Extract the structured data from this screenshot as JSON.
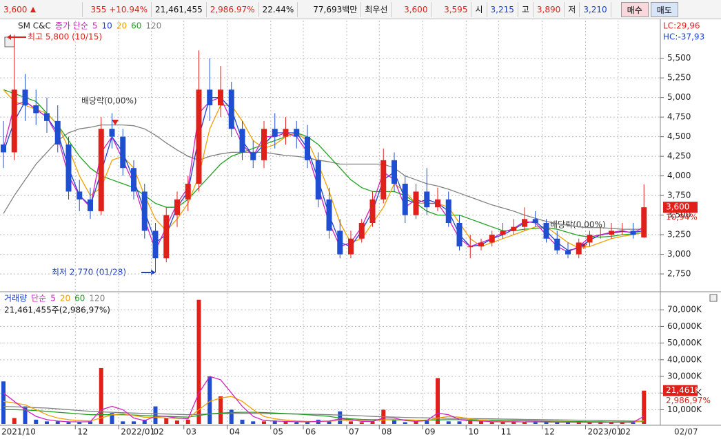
{
  "toolbar": {
    "price": "3,600",
    "change": "355",
    "change_rate": "+10.94%",
    "volume": "21,461,455",
    "volume_rate": "2,986.97%",
    "turnover": "22.44%",
    "amount": "77,693백만",
    "best_label": "최우선",
    "ask": "3,600",
    "bid": "3,595",
    "open_label": "시",
    "open": "3,215",
    "high_label": "고",
    "high": "3,890",
    "low_label": "저",
    "low": "3,210",
    "buy": "매수",
    "sell": "매도"
  },
  "chart_data": [
    {
      "type": "candlestick",
      "title": "SM C&C",
      "ma_label": "종가 단순",
      "up_color": "#e0201a",
      "down_color": "#1f4fd0",
      "categories": [
        "2021/10",
        null,
        null,
        null,
        null,
        null,
        null,
        "12",
        null,
        null,
        null,
        "2022/01",
        null,
        null,
        "02",
        null,
        null,
        "03",
        null,
        null,
        null,
        "04",
        null,
        null,
        null,
        "05",
        null,
        null,
        "06",
        null,
        null,
        null,
        "07",
        null,
        null,
        "08",
        null,
        null,
        null,
        "09",
        null,
        null,
        null,
        "10",
        null,
        null,
        "11",
        null,
        null,
        null,
        "12",
        null,
        null,
        null,
        "2023/01",
        null,
        null,
        "02",
        null,
        null
      ],
      "open": [
        4400,
        4300,
        5100,
        4900,
        4800,
        4700,
        4400,
        3800,
        3700,
        3550,
        4600,
        4500,
        4100,
        3800,
        3300,
        2950,
        3500,
        3700,
        3900,
        5100,
        4900,
        5100,
        4600,
        4300,
        4200,
        4600,
        4500,
        4600,
        4500,
        4200,
        3700,
        3300,
        3000,
        3200,
        3400,
        3700,
        4200,
        3900,
        3500,
        3800,
        3600,
        3700,
        3400,
        3100,
        3100,
        3150,
        3250,
        3300,
        3350,
        3450,
        3400,
        3200,
        3050,
        3000,
        3150,
        3250,
        3250,
        3300,
        3300,
        3215
      ],
      "high": [
        4700,
        5800,
        5300,
        5100,
        5000,
        4900,
        4500,
        3950,
        3850,
        4750,
        4800,
        4600,
        4200,
        3900,
        3400,
        3600,
        3800,
        4000,
        5600,
        5500,
        5400,
        5200,
        4700,
        4450,
        4700,
        4800,
        4750,
        4700,
        4650,
        4300,
        3850,
        3450,
        3300,
        3450,
        3800,
        4350,
        4300,
        4000,
        3900,
        4100,
        3850,
        3800,
        3500,
        3250,
        3200,
        3300,
        3400,
        3450,
        3600,
        3550,
        3450,
        3300,
        3150,
        3200,
        3300,
        3350,
        3400,
        3400,
        3400,
        3890
      ],
      "low": [
        4100,
        4200,
        4700,
        4650,
        4550,
        4300,
        3700,
        3550,
        3450,
        3500,
        4350,
        4000,
        3700,
        3200,
        2770,
        2900,
        3350,
        3550,
        3800,
        4700,
        4750,
        4500,
        4200,
        4100,
        4100,
        4350,
        4400,
        4350,
        4100,
        3600,
        3200,
        2950,
        2950,
        3150,
        3350,
        3650,
        3800,
        3400,
        3450,
        3500,
        3550,
        3350,
        3050,
        2950,
        3050,
        3100,
        3200,
        3250,
        3300,
        3350,
        3150,
        3000,
        2950,
        2950,
        3100,
        3200,
        3200,
        3250,
        3200,
        3210
      ],
      "close": [
        4300,
        5100,
        4900,
        4800,
        4700,
        4400,
        3800,
        3700,
        3550,
        4600,
        4500,
        4100,
        3800,
        3300,
        2950,
        3500,
        3700,
        3900,
        5100,
        4900,
        5100,
        4600,
        4300,
        4200,
        4600,
        4500,
        4600,
        4500,
        4200,
        3700,
        3300,
        3000,
        3200,
        3400,
        3700,
        4200,
        3900,
        3500,
        3800,
        3600,
        3700,
        3400,
        3100,
        3100,
        3150,
        3250,
        3300,
        3350,
        3450,
        3400,
        3200,
        3050,
        3000,
        3150,
        3250,
        3250,
        3300,
        3300,
        3250,
        3600
      ],
      "series": [
        {
          "name": "5",
          "color": "#d020c0",
          "values": [
            4350,
            4900,
            4950,
            4850,
            4750,
            4500,
            4000,
            3750,
            3600,
            4300,
            4500,
            4200,
            3900,
            3450,
            3050,
            3350,
            3650,
            3850,
            4800,
            4950,
            5000,
            4700,
            4400,
            4250,
            4500,
            4500,
            4550,
            4500,
            4300,
            3850,
            3400,
            3100,
            3150,
            3350,
            3650,
            4050,
            3950,
            3600,
            3700,
            3650,
            3650,
            3450,
            3200,
            3100,
            3150,
            3200,
            3280,
            3330,
            3420,
            3400,
            3250,
            3100,
            3030,
            3100,
            3220,
            3250,
            3280,
            3300,
            3270,
            3350
          ]
        },
        {
          "name": "10",
          "color": "#2040d0",
          "values": [
            4300,
            4700,
            4950,
            4850,
            4750,
            4550,
            4100,
            3750,
            3620,
            4050,
            4500,
            4300,
            3950,
            3550,
            3150,
            3250,
            3600,
            3800,
            4500,
            5000,
            5000,
            4850,
            4450,
            4250,
            4400,
            4550,
            4550,
            4550,
            4350,
            3950,
            3500,
            3150,
            3100,
            3300,
            3550,
            3950,
            4050,
            3700,
            3650,
            3700,
            3650,
            3550,
            3250,
            3100,
            3120,
            3200,
            3250,
            3320,
            3400,
            3420,
            3300,
            3150,
            3050,
            3080,
            3180,
            3250,
            3270,
            3290,
            3280,
            3300
          ]
        },
        {
          "name": "20",
          "color": "#f0a000",
          "values": [
            5100,
            4950,
            4900,
            4850,
            4800,
            4650,
            4350,
            4000,
            3750,
            3850,
            4200,
            4250,
            4100,
            3750,
            3450,
            3300,
            3450,
            3650,
            4000,
            4600,
            4900,
            4900,
            4700,
            4450,
            4350,
            4400,
            4500,
            4550,
            4450,
            4150,
            3800,
            3400,
            3150,
            3200,
            3400,
            3600,
            3900,
            3800,
            3650,
            3650,
            3650,
            3600,
            3400,
            3200,
            3100,
            3150,
            3200,
            3250,
            3300,
            3350,
            3350,
            3250,
            3150,
            3080,
            3100,
            3150,
            3200,
            3230,
            3250,
            3280
          ]
        },
        {
          "name": "60",
          "color": "#20a020",
          "values": [
            5100,
            5050,
            5000,
            4950,
            4800,
            4650,
            4450,
            4250,
            4100,
            4000,
            3950,
            3900,
            3850,
            3750,
            3650,
            3600,
            3600,
            3700,
            3850,
            4000,
            4150,
            4250,
            4300,
            4350,
            4400,
            4450,
            4500,
            4550,
            4500,
            4400,
            4250,
            4100,
            3950,
            3850,
            3800,
            3800,
            3800,
            3750,
            3650,
            3550,
            3500,
            3500,
            3500,
            3450,
            3400,
            3350,
            3300,
            3300,
            3320,
            3330,
            3340,
            3320,
            3280,
            3240,
            3220,
            3220,
            3230,
            3250,
            3260,
            3280
          ]
        },
        {
          "name": "120",
          "color": "#808080",
          "values": [
            3520,
            3750,
            3950,
            4150,
            4300,
            4450,
            4550,
            4600,
            4620,
            4650,
            4650,
            4650,
            4640,
            4600,
            4520,
            4420,
            4330,
            4250,
            4200,
            4250,
            4280,
            4300,
            4300,
            4300,
            4300,
            4280,
            4260,
            4250,
            4230,
            4200,
            4180,
            4150,
            4150,
            4150,
            4150,
            4150,
            4100,
            4000,
            3950,
            3900,
            3870,
            3830,
            3780,
            3730,
            3680,
            3630,
            3590,
            3550,
            3500,
            3460,
            3420,
            3390,
            3370,
            3350,
            3340,
            3340,
            3330,
            3320,
            3320,
            3320
          ]
        }
      ],
      "ylim": [
        2540,
        5980
      ],
      "yticks": [
        {
          "value": 2750,
          "label": "2,750"
        },
        {
          "value": 3000,
          "label": "3,000"
        },
        {
          "value": 3250,
          "label": "3,250"
        },
        {
          "value": 3500,
          "label": "3,500"
        },
        {
          "value": 3750,
          "label": "3,750"
        },
        {
          "value": 4000,
          "label": "4,000"
        },
        {
          "value": 4250,
          "label": "4,250"
        },
        {
          "value": 4500,
          "label": "4,500"
        },
        {
          "value": 4750,
          "label": "4,750"
        },
        {
          "value": 5000,
          "label": "5,000"
        },
        {
          "value": 5250,
          "label": "5,250"
        },
        {
          "value": 5500,
          "label": "5,500"
        }
      ],
      "high_note": "최고 5,800 (10/15)",
      "low_note": "최저 2,770 (01/28)",
      "dividend_notes": [
        "배당락(0,00%)",
        "배당락(0,00%)"
      ],
      "lc": "LC:29,96",
      "hc": "HC:-37,93",
      "last_label": {
        "value": 3600,
        "label": "3,600"
      },
      "last_change": "10,94%",
      "last_date": "02/07",
      "grid": true
    },
    {
      "type": "bar",
      "name": "거래량",
      "ma_label": "단순",
      "unit_note": "21,461,455주(2,986,97%)",
      "values": [
        27000,
        5000,
        12000,
        4000,
        3000,
        3000,
        2500,
        2500,
        3000,
        35000,
        8000,
        3000,
        3000,
        4000,
        12000,
        5000,
        3500,
        4000,
        76000,
        30000,
        18000,
        10000,
        4000,
        3000,
        3000,
        3500,
        3000,
        2500,
        2500,
        4000,
        3000,
        9000,
        3000,
        2500,
        3000,
        10000,
        3500,
        2500,
        3000,
        4000,
        29000,
        3000,
        3000,
        3500,
        3000,
        2500,
        2500,
        3000,
        2500,
        3000,
        2500,
        2500,
        2500,
        2500,
        2500,
        2500,
        2500,
        2500,
        2500,
        21461
      ],
      "series": [
        {
          "name": "5",
          "color": "#d020c0",
          "values": [
            20000,
            15000,
            10000,
            6000,
            4000,
            3200,
            2800,
            2700,
            2800,
            10000,
            12000,
            10000,
            5000,
            3500,
            6000,
            6000,
            5000,
            4500,
            20000,
            30000,
            28000,
            20000,
            12000,
            6000,
            3500,
            3200,
            3000,
            2800,
            2700,
            3000,
            3200,
            4500,
            4000,
            3000,
            3000,
            5000,
            5000,
            3500,
            3000,
            3500,
            8000,
            7000,
            4000,
            3300,
            3200,
            2800,
            2700,
            2800,
            2700,
            2800,
            2600,
            2500,
            2500,
            2500,
            2500,
            2500,
            2500,
            2500,
            2500,
            6000
          ]
        },
        {
          "name": "20",
          "color": "#f0a000",
          "values": [
            15000,
            14000,
            13000,
            10000,
            7000,
            5000,
            4000,
            3500,
            3300,
            5000,
            7000,
            7500,
            6500,
            5500,
            5500,
            5000,
            4800,
            4800,
            10000,
            15000,
            17000,
            18000,
            15000,
            10000,
            6000,
            4500,
            3800,
            3300,
            3000,
            3000,
            3100,
            3500,
            3700,
            3500,
            3300,
            3800,
            4200,
            4000,
            3700,
            3500,
            5000,
            6000,
            5500,
            4500,
            3800,
            3300,
            3000,
            2800,
            2700,
            2700,
            2700,
            2600,
            2600,
            2500,
            2500,
            2500,
            2500,
            2500,
            2500,
            3400
          ]
        },
        {
          "name": "60",
          "color": "#20a020",
          "values": [
            10000,
            10000,
            9800,
            9500,
            9000,
            8500,
            8000,
            7500,
            7000,
            7000,
            7000,
            7000,
            6800,
            6500,
            6300,
            6000,
            5800,
            5600,
            6500,
            7500,
            8000,
            8300,
            8500,
            8500,
            8300,
            8000,
            7700,
            7400,
            7000,
            6500,
            6000,
            5000,
            4500,
            4200,
            4000,
            4000,
            3900,
            3800,
            3700,
            3700,
            3900,
            4000,
            4000,
            3900,
            3800,
            3700,
            3600,
            3500,
            3400,
            3300,
            3200,
            3100,
            3000,
            2900,
            2800,
            2800,
            2700,
            2700,
            2700,
            3000
          ]
        },
        {
          "name": "120",
          "color": "#808080",
          "values": [
            12000,
            11800,
            11500,
            11200,
            11000,
            10500,
            10000,
            9500,
            9000,
            8700,
            8500,
            8200,
            8000,
            7800,
            7600,
            7400,
            7200,
            7000,
            7200,
            7400,
            7600,
            7700,
            7800,
            7800,
            7700,
            7600,
            7500,
            7400,
            7300,
            7200,
            7000,
            6800,
            6600,
            6300,
            6000,
            5800,
            5600,
            5400,
            5200,
            5100,
            5000,
            4900,
            4800,
            4700,
            4600,
            4500,
            4400,
            4300,
            4200,
            4100,
            4000,
            3900,
            3800,
            3700,
            3600,
            3500,
            3400,
            3300,
            3200,
            3200
          ]
        }
      ],
      "ylim": [
        1500,
        80000
      ],
      "yticks": [
        {
          "value": 10000,
          "label": "10,000K"
        },
        {
          "value": 20000,
          "label": "20,000K"
        },
        {
          "value": 30000,
          "label": "30,000K"
        },
        {
          "value": 40000,
          "label": "40,000K"
        },
        {
          "value": 50000,
          "label": "50,000K"
        },
        {
          "value": 60000,
          "label": "60,000K"
        },
        {
          "value": 70000,
          "label": "70,000K"
        }
      ],
      "last_label": {
        "value": 21461,
        "label": "21,461K"
      },
      "last_change": "2,986,97%",
      "grid": true
    }
  ]
}
